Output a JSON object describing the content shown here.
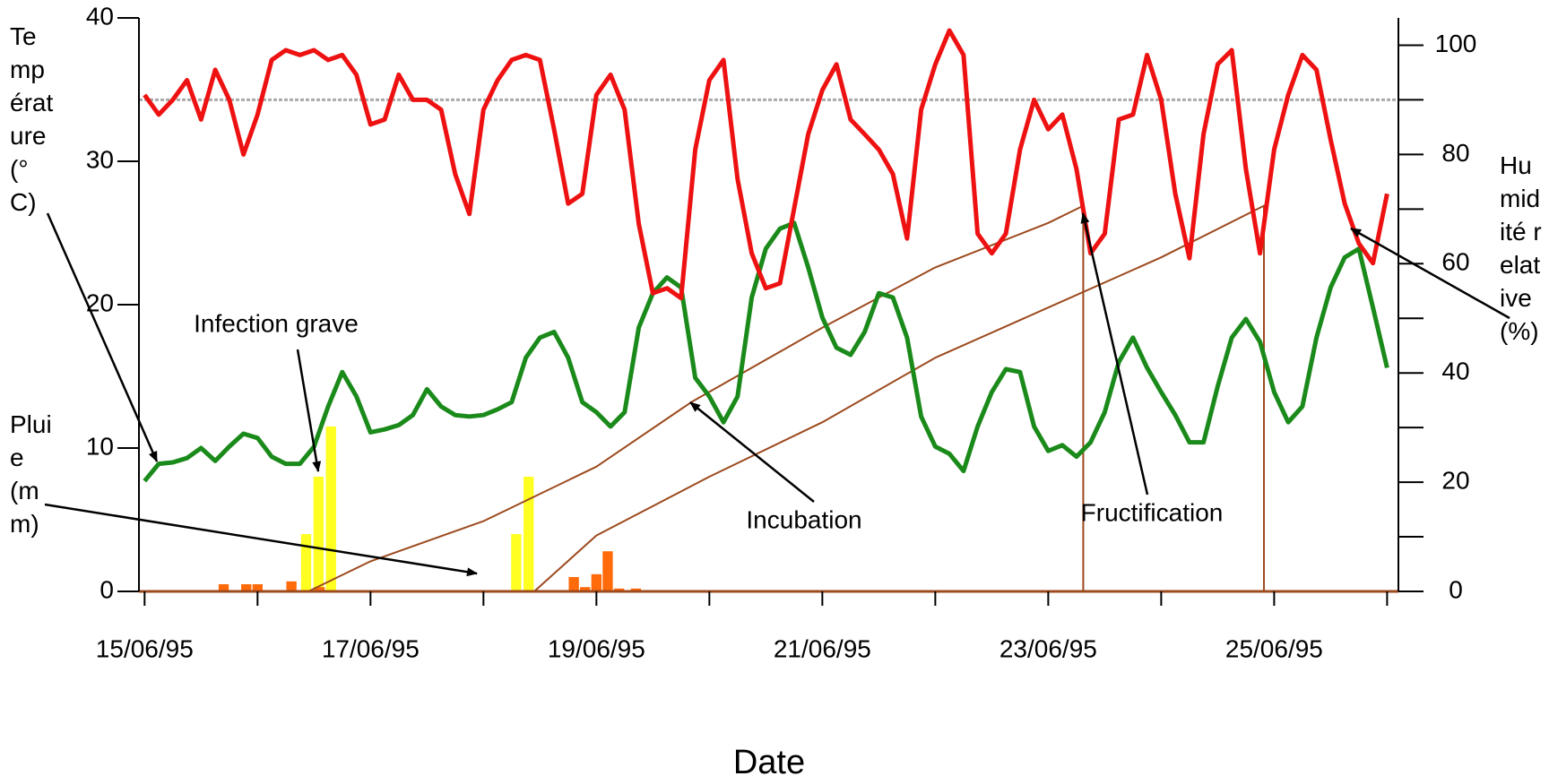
{
  "chart_data": {
    "type": "line",
    "x_label": "Date",
    "y_label": "Température (°C)",
    "y2_label": "Humidité relative (%)",
    "rain_label": "Pluie (mm)",
    "annotations": [
      "Infection grave",
      "Incubation",
      "Fructification"
    ],
    "xlim": [
      -0.05,
      11.1
    ],
    "xticks": [
      {
        "value": 0,
        "label": "15/06/95"
      },
      {
        "value": 2,
        "label": "17/06/95"
      },
      {
        "value": 4,
        "label": "19/06/95"
      },
      {
        "value": 6,
        "label": "21/06/95"
      },
      {
        "value": 8,
        "label": "23/06/95"
      },
      {
        "value": 10,
        "label": "25/06/95"
      }
    ],
    "xminor": [
      1,
      3,
      5,
      7,
      9,
      11
    ],
    "ylim": [
      0,
      40
    ],
    "yticks": [
      0,
      10,
      20,
      30,
      40
    ],
    "y2lim": [
      0,
      105
    ],
    "y2ticks": [
      0,
      20,
      40,
      60,
      80,
      100
    ],
    "y2minor": [
      10,
      30,
      50,
      70,
      90
    ],
    "threshold": {
      "value": 90,
      "axis": "y2",
      "color": "#aaaaaa"
    },
    "x": [
      0,
      0.125,
      0.25,
      0.375,
      0.5,
      0.625,
      0.75,
      0.875,
      1,
      1.125,
      1.25,
      1.375,
      1.5,
      1.625,
      1.75,
      1.875,
      2,
      2.125,
      2.25,
      2.375,
      2.5,
      2.625,
      2.75,
      2.875,
      3,
      3.125,
      3.25,
      3.375,
      3.5,
      3.625,
      3.75,
      3.875,
      4,
      4.125,
      4.25,
      4.375,
      4.5,
      4.625,
      4.75,
      4.875,
      5,
      5.125,
      5.25,
      5.375,
      5.5,
      5.625,
      5.75,
      5.875,
      6,
      6.125,
      6.25,
      6.375,
      6.5,
      6.625,
      6.75,
      6.875,
      7,
      7.125,
      7.25,
      7.375,
      7.5,
      7.625,
      7.75,
      7.875,
      8,
      8.125,
      8.25,
      8.375,
      8.5,
      8.625,
      8.75,
      8.875,
      9,
      9.125,
      9.25,
      9.375,
      9.5,
      9.625,
      9.75,
      9.875,
      10,
      10.125,
      10.25,
      10.375,
      10.5,
      10.625,
      10.75,
      10.875,
      11
    ],
    "series": [
      {
        "kind": "bar",
        "color": "#ffff22",
        "axis": "y",
        "x": [
          1.43,
          1.54,
          1.65,
          3.29,
          3.4
        ],
        "values": [
          4.0,
          8.0,
          11.5,
          4.0,
          8.0
        ]
      },
      {
        "kind": "bar",
        "color": "#ff6a0a",
        "axis": "y",
        "x": [
          0.7,
          0.9,
          1.0,
          1.3,
          1.55,
          3.8,
          3.9,
          4.0,
          4.1,
          4.2,
          4.35
        ],
        "values": [
          0.5,
          0.5,
          0.5,
          0.7,
          0.3,
          1.0,
          0.3,
          1.2,
          2.8,
          0.2,
          0.2
        ]
      },
      {
        "kind": "line",
        "color": "#9c4a1e",
        "axis": "y",
        "width": 2,
        "x": [
          1.45,
          2,
          3,
          4,
          4.84,
          6,
          7,
          8,
          8.31,
          8.31
        ],
        "values": [
          0,
          2.1,
          4.9,
          8.7,
          13.2,
          18.4,
          22.6,
          25.7,
          26.9,
          0
        ]
      },
      {
        "kind": "line",
        "color": "#9c4a1e",
        "axis": "y",
        "width": 2,
        "x": [
          3.45,
          4,
          5,
          6,
          7,
          8,
          9,
          9.91,
          9.91
        ],
        "values": [
          0,
          3.9,
          8.0,
          11.8,
          16.3,
          19.8,
          23.3,
          26.9,
          0
        ]
      },
      {
        "kind": "line",
        "color": "#1a8a1a",
        "axis": "y",
        "width": 5,
        "values": [
          7.7,
          8.9,
          9.0,
          9.3,
          10.0,
          9.1,
          10.1,
          11.0,
          10.7,
          9.4,
          8.9,
          8.9,
          10.1,
          12.9,
          15.3,
          13.6,
          11.1,
          11.3,
          11.6,
          12.3,
          14.1,
          12.9,
          12.3,
          12.2,
          12.3,
          12.7,
          13.2,
          16.3,
          17.7,
          18.1,
          16.3,
          13.2,
          12.5,
          11.5,
          12.5,
          18.4,
          20.8,
          21.9,
          21.2,
          14.9,
          13.6,
          11.8,
          13.6,
          20.5,
          23.9,
          25.3,
          25.7,
          22.6,
          19.1,
          17.0,
          16.5,
          18.1,
          20.8,
          20.5,
          17.7,
          12.2,
          10.1,
          9.6,
          8.4,
          11.5,
          13.9,
          15.5,
          15.3,
          11.5,
          9.8,
          10.2,
          9.4,
          10.4,
          12.5,
          16.0,
          17.7,
          15.6,
          13.9,
          12.3,
          10.4,
          10.4,
          14.3,
          17.7,
          19.0,
          17.4,
          13.9,
          11.8,
          12.9,
          17.7,
          21.2,
          23.3,
          23.9,
          19.8,
          15.6
        ]
      },
      {
        "kind": "line",
        "color": "#ee1111",
        "axis": "y2",
        "width": 5,
        "values": [
          90.9,
          87.3,
          90.0,
          93.6,
          86.4,
          95.5,
          90.0,
          80.0,
          87.3,
          97.3,
          99.1,
          98.2,
          99.1,
          97.3,
          98.2,
          94.6,
          85.5,
          86.4,
          94.6,
          90.0,
          90.0,
          88.2,
          76.4,
          69.1,
          88.2,
          93.6,
          97.3,
          98.2,
          97.3,
          84.6,
          71.0,
          72.8,
          90.9,
          94.6,
          88.2,
          67.3,
          54.6,
          55.5,
          53.7,
          80.9,
          93.6,
          97.3,
          75.5,
          61.9,
          55.5,
          56.4,
          70.1,
          83.7,
          91.8,
          96.5,
          86.4,
          83.7,
          80.9,
          76.4,
          64.6,
          88.2,
          96.5,
          102.7,
          98.2,
          65.5,
          61.9,
          65.5,
          80.9,
          90.0,
          84.6,
          87.3,
          77.3,
          61.9,
          65.5,
          86.4,
          87.3,
          98.2,
          90.0,
          72.8,
          61.0,
          83.7,
          96.5,
          99.1,
          77.3,
          61.9,
          80.9,
          90.9,
          98.2,
          95.5,
          82.7,
          71.0,
          63.7,
          60.1,
          72.8
        ]
      }
    ]
  }
}
